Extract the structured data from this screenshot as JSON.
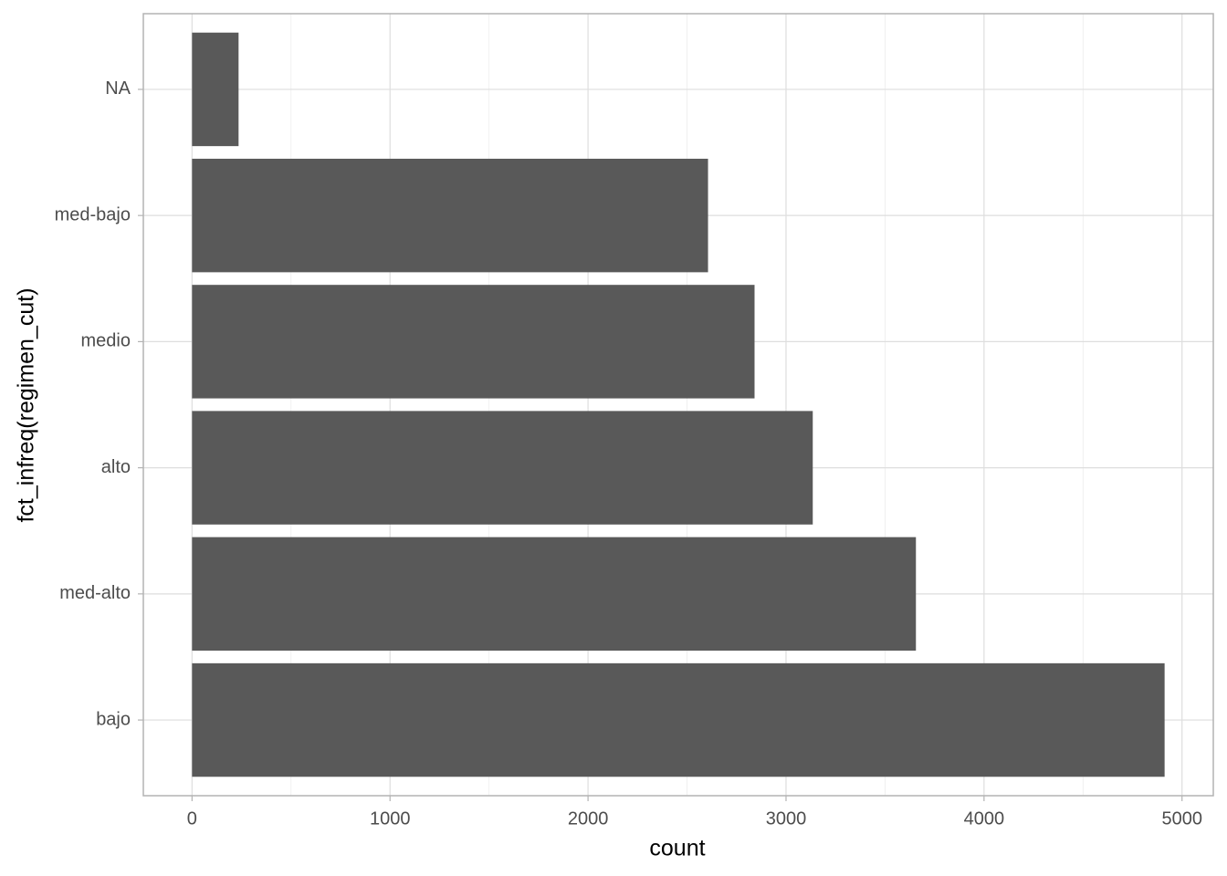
{
  "chart_data": {
    "type": "bar",
    "orientation": "horizontal",
    "x_label": "count",
    "y_label": "fct_infreq(regimen_cut)",
    "categories": [
      "NA",
      "med-bajo",
      "medio",
      "alto",
      "med-alto",
      "bajo"
    ],
    "values": [
      235,
      2606,
      2841,
      3135,
      3656,
      4912
    ],
    "color": "#595959",
    "xlim": [
      -246,
      5158
    ],
    "xticks": [
      0,
      1000,
      2000,
      3000,
      4000,
      5000
    ],
    "grid": true
  }
}
